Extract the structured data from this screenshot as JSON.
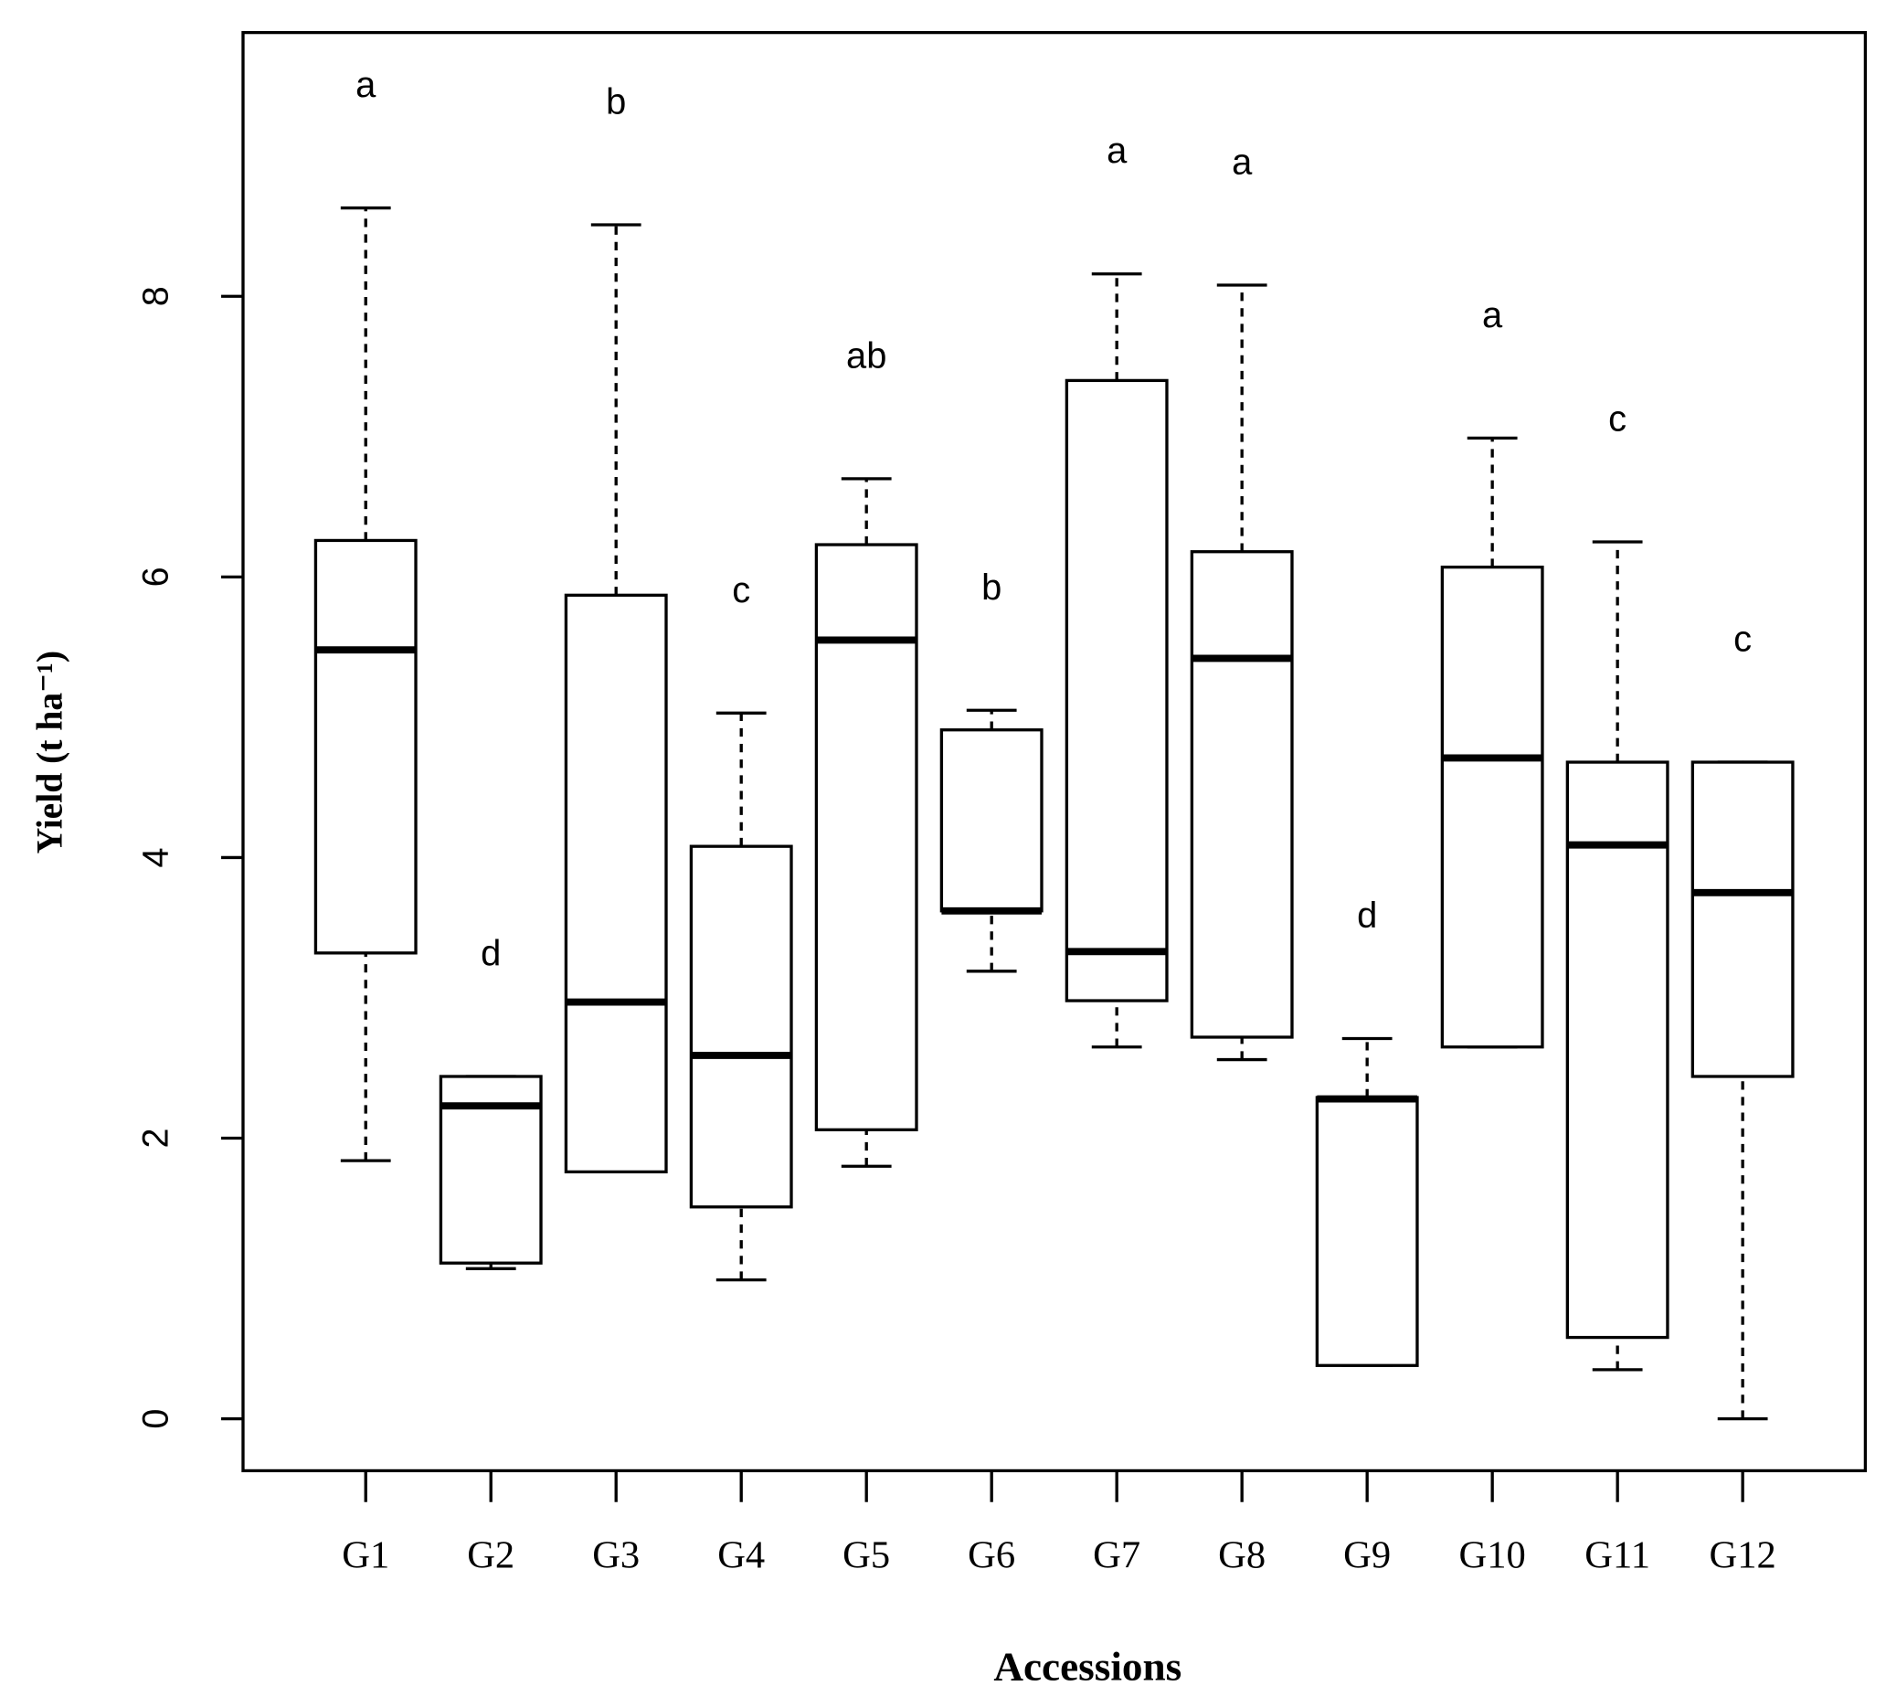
{
  "chart_data": {
    "type": "boxplot",
    "xlabel": "Accessions",
    "ylabel": "Yield (t ha⁻¹)",
    "categories": [
      "G1",
      "G2",
      "G3",
      "G4",
      "G5",
      "G6",
      "G7",
      "G8",
      "G9",
      "G10",
      "G11",
      "G12"
    ],
    "min": [
      1.84,
      1.07,
      1.76,
      0.99,
      1.8,
      3.19,
      2.65,
      2.56,
      0.38,
      2.65,
      0.35,
      0.0
    ],
    "q1": [
      3.32,
      1.11,
      1.76,
      1.51,
      2.06,
      3.62,
      2.98,
      2.72,
      0.38,
      2.65,
      0.58,
      2.44
    ],
    "median": [
      5.48,
      2.23,
      2.97,
      2.59,
      5.55,
      3.62,
      3.33,
      5.42,
      2.28,
      4.71,
      4.09,
      3.75
    ],
    "q3": [
      6.26,
      2.44,
      5.87,
      4.08,
      6.23,
      4.91,
      7.4,
      6.18,
      2.29,
      6.07,
      4.68,
      4.68
    ],
    "max": [
      8.63,
      2.44,
      8.51,
      5.03,
      6.7,
      5.05,
      8.16,
      8.08,
      2.71,
      6.99,
      6.25,
      4.68
    ],
    "letters": [
      "a",
      "d",
      "b",
      "c",
      "ab",
      "b",
      "a",
      "a",
      "d",
      "a",
      "c",
      "c"
    ],
    "ylim": [
      -0.37,
      9.88
    ],
    "yticks": [
      0,
      2,
      4,
      6,
      8
    ]
  }
}
